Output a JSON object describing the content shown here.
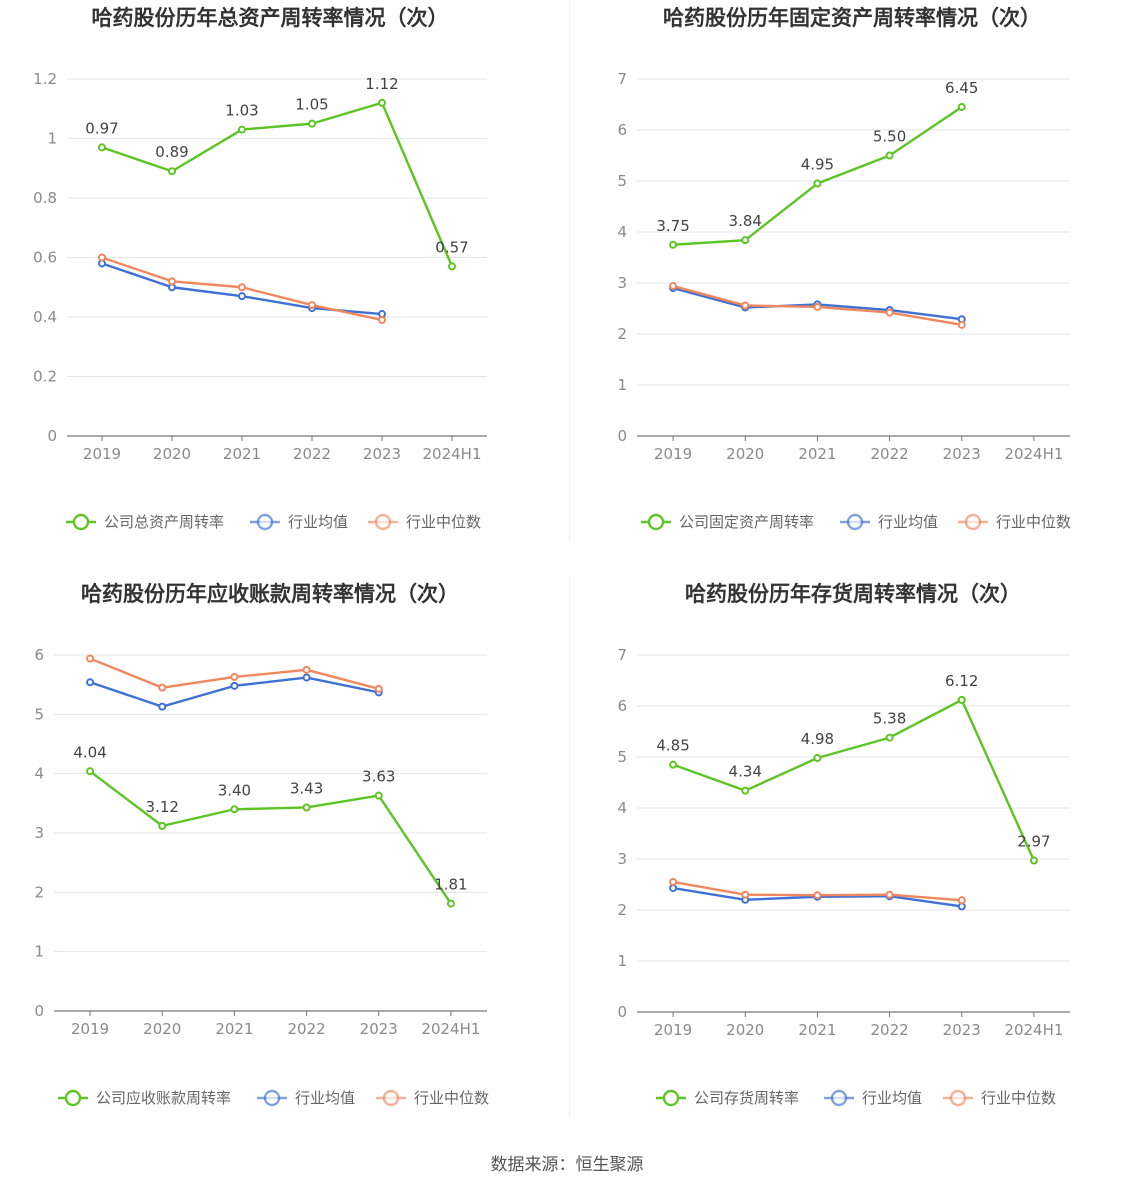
{
  "colors": {
    "company": "#5cc423",
    "avg": "#3f71d4",
    "median": "#f0875f",
    "grid": "#e3e6ee",
    "axis": "#777777",
    "tick": "#8a8a8a",
    "label": "#444444",
    "title": "#333333"
  },
  "source": "数据来源：恒生聚源",
  "chart_data": [
    {
      "type": "line",
      "title": "哈药股份历年总资产周转率情况（次）",
      "categories": [
        "2019",
        "2020",
        "2021",
        "2022",
        "2023",
        "2024H1"
      ],
      "ylim": [
        0,
        1.2
      ],
      "yticks": [
        "0",
        "0.2",
        "0.4",
        "0.6",
        "0.8",
        "1",
        "1.2"
      ],
      "series": [
        {
          "name": "公司总资产周转率",
          "values": [
            0.97,
            0.89,
            1.03,
            1.05,
            1.12,
            0.57
          ],
          "labels": [
            "0.97",
            "0.89",
            "1.03",
            "1.05",
            "1.12",
            "0.57"
          ]
        },
        {
          "name": "行业均值",
          "values": [
            0.58,
            0.5,
            0.47,
            0.43,
            0.41,
            null
          ]
        },
        {
          "name": "行业中位数",
          "values": [
            0.6,
            0.52,
            0.5,
            0.44,
            0.39,
            null
          ]
        }
      ]
    },
    {
      "type": "line",
      "title": "哈药股份历年固定资产周转率情况（次）",
      "categories": [
        "2019",
        "2020",
        "2021",
        "2022",
        "2023",
        "2024H1"
      ],
      "ylim": [
        0,
        7
      ],
      "yticks": [
        "0",
        "1",
        "2",
        "3",
        "4",
        "5",
        "6",
        "7"
      ],
      "series": [
        {
          "name": "公司固定资产周转率",
          "values": [
            3.75,
            3.84,
            4.95,
            5.5,
            6.45,
            null
          ],
          "labels": [
            "3.75",
            "3.84",
            "4.95",
            "5.50",
            "6.45",
            ""
          ]
        },
        {
          "name": "行业均值",
          "values": [
            2.9,
            2.52,
            2.58,
            2.47,
            2.29,
            null
          ]
        },
        {
          "name": "行业中位数",
          "values": [
            2.94,
            2.56,
            2.53,
            2.42,
            2.18,
            null
          ]
        }
      ]
    },
    {
      "type": "line",
      "title": "哈药股份历年应收账款周转率情况（次）",
      "categories": [
        "2019",
        "2020",
        "2021",
        "2022",
        "2023",
        "2024H1"
      ],
      "ylim": [
        0,
        6
      ],
      "yticks": [
        "0",
        "1",
        "2",
        "3",
        "4",
        "5",
        "6"
      ],
      "series": [
        {
          "name": "公司应收账款周转率",
          "values": [
            4.04,
            3.12,
            3.4,
            3.43,
            3.63,
            1.81
          ],
          "labels": [
            "4.04",
            "3.12",
            "3.40",
            "3.43",
            "3.63",
            "1.81"
          ]
        },
        {
          "name": "行业均值",
          "values": [
            5.54,
            5.13,
            5.48,
            5.62,
            5.37,
            null
          ]
        },
        {
          "name": "行业中位数",
          "values": [
            5.94,
            5.45,
            5.63,
            5.75,
            5.43,
            null
          ]
        }
      ]
    },
    {
      "type": "line",
      "title": "哈药股份历年存货周转率情况（次）",
      "categories": [
        "2019",
        "2020",
        "2021",
        "2022",
        "2023",
        "2024H1"
      ],
      "ylim": [
        0,
        7
      ],
      "yticks": [
        "0",
        "1",
        "2",
        "3",
        "4",
        "5",
        "6",
        "7"
      ],
      "series": [
        {
          "name": "公司存货周转率",
          "values": [
            4.85,
            4.34,
            4.98,
            5.38,
            6.12,
            2.97
          ],
          "labels": [
            "4.85",
            "4.34",
            "4.98",
            "5.38",
            "6.12",
            "2.97"
          ]
        },
        {
          "name": "行业均值",
          "values": [
            2.43,
            2.2,
            2.26,
            2.27,
            2.07,
            null
          ]
        },
        {
          "name": "行业中位数",
          "values": [
            2.55,
            2.3,
            2.29,
            2.3,
            2.19,
            null
          ]
        }
      ]
    }
  ]
}
